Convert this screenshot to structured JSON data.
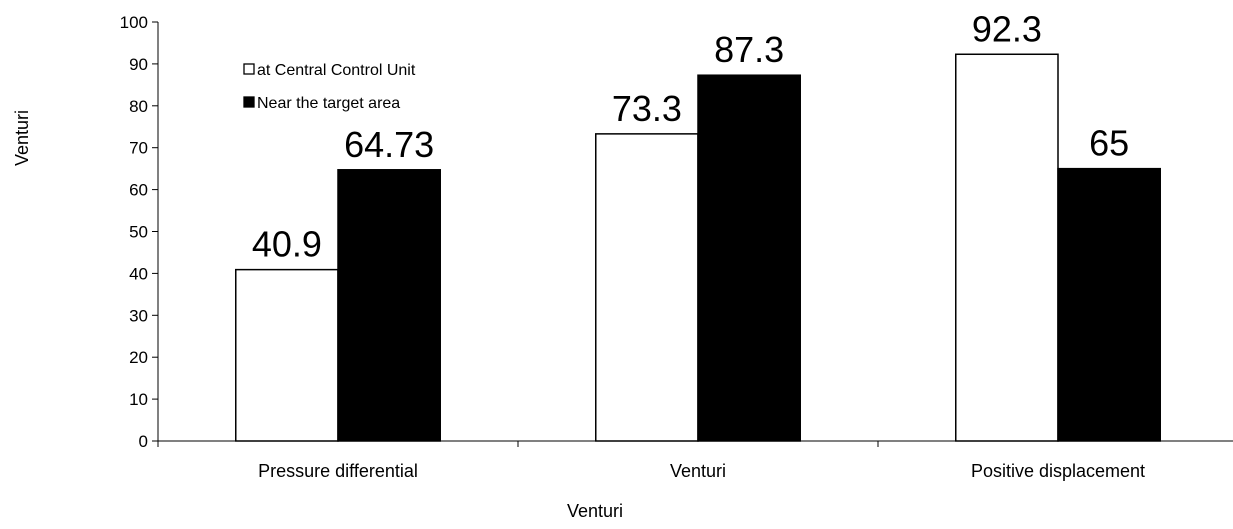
{
  "chart_data": {
    "type": "bar",
    "categories": [
      "Pressure differential",
      "Venturi",
      "Positive displacement"
    ],
    "series": [
      {
        "name": "at Central Control Unit",
        "values": [
          40.9,
          73.3,
          92.3
        ],
        "color": "#ffffff"
      },
      {
        "name": "Near the target area",
        "values": [
          64.73,
          87.3,
          65
        ],
        "color": "#000000"
      }
    ],
    "data_labels": [
      [
        "40.9",
        "73.3",
        "92.3"
      ],
      [
        "64.73",
        "87.3",
        "65"
      ]
    ],
    "title": "",
    "xlabel": "Venturi",
    "ylabel": "Venturi",
    "ylim": [
      0,
      100
    ],
    "yticks": [
      "0",
      "10",
      "20",
      "30",
      "40",
      "50",
      "60",
      "70",
      "80",
      "90",
      "100"
    ],
    "grid": false,
    "legend_position": "top-left"
  }
}
